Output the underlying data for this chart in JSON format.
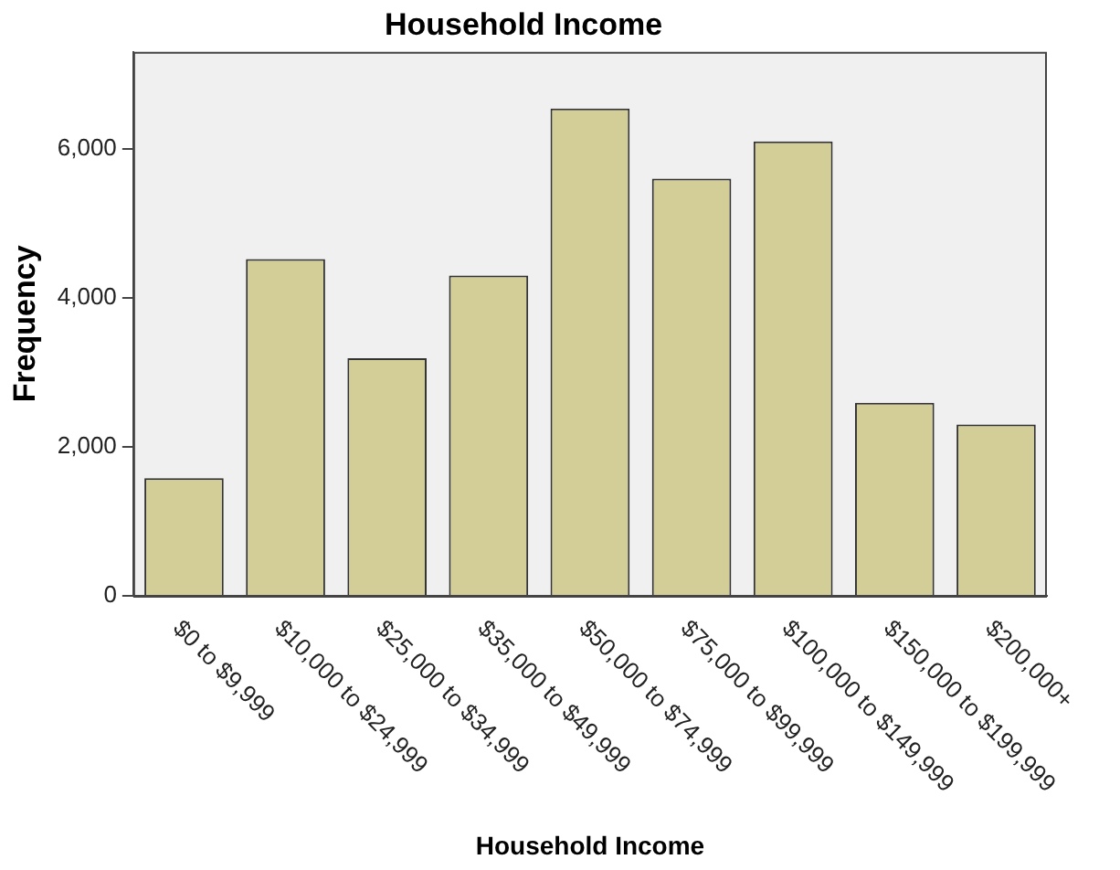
{
  "chart_data": {
    "type": "bar",
    "title": "Household Income",
    "xlabel": "Household Income",
    "ylabel": "Frequency",
    "categories": [
      "$0 to $9,999",
      "$10,000 to $24,999",
      "$25,000 to $34,999",
      "$35,000 to $49,999",
      "$50,000 to $74,999",
      "$75,000 to $99,999",
      "$100,000 to $149,999",
      "$150,000 to $199,999",
      "$200,000+"
    ],
    "values": [
      1580,
      4520,
      3190,
      4300,
      6540,
      5600,
      6100,
      2590,
      2300
    ],
    "color": "#d3ce97",
    "ylim": [
      0,
      7300
    ],
    "yticks": [
      0,
      {
        "value": 2000,
        "label": "2,000"
      },
      {
        "value": 4000,
        "label": "4,000"
      },
      {
        "value": 6000,
        "label": "6,000"
      }
    ],
    "grid": false,
    "legend": false
  }
}
